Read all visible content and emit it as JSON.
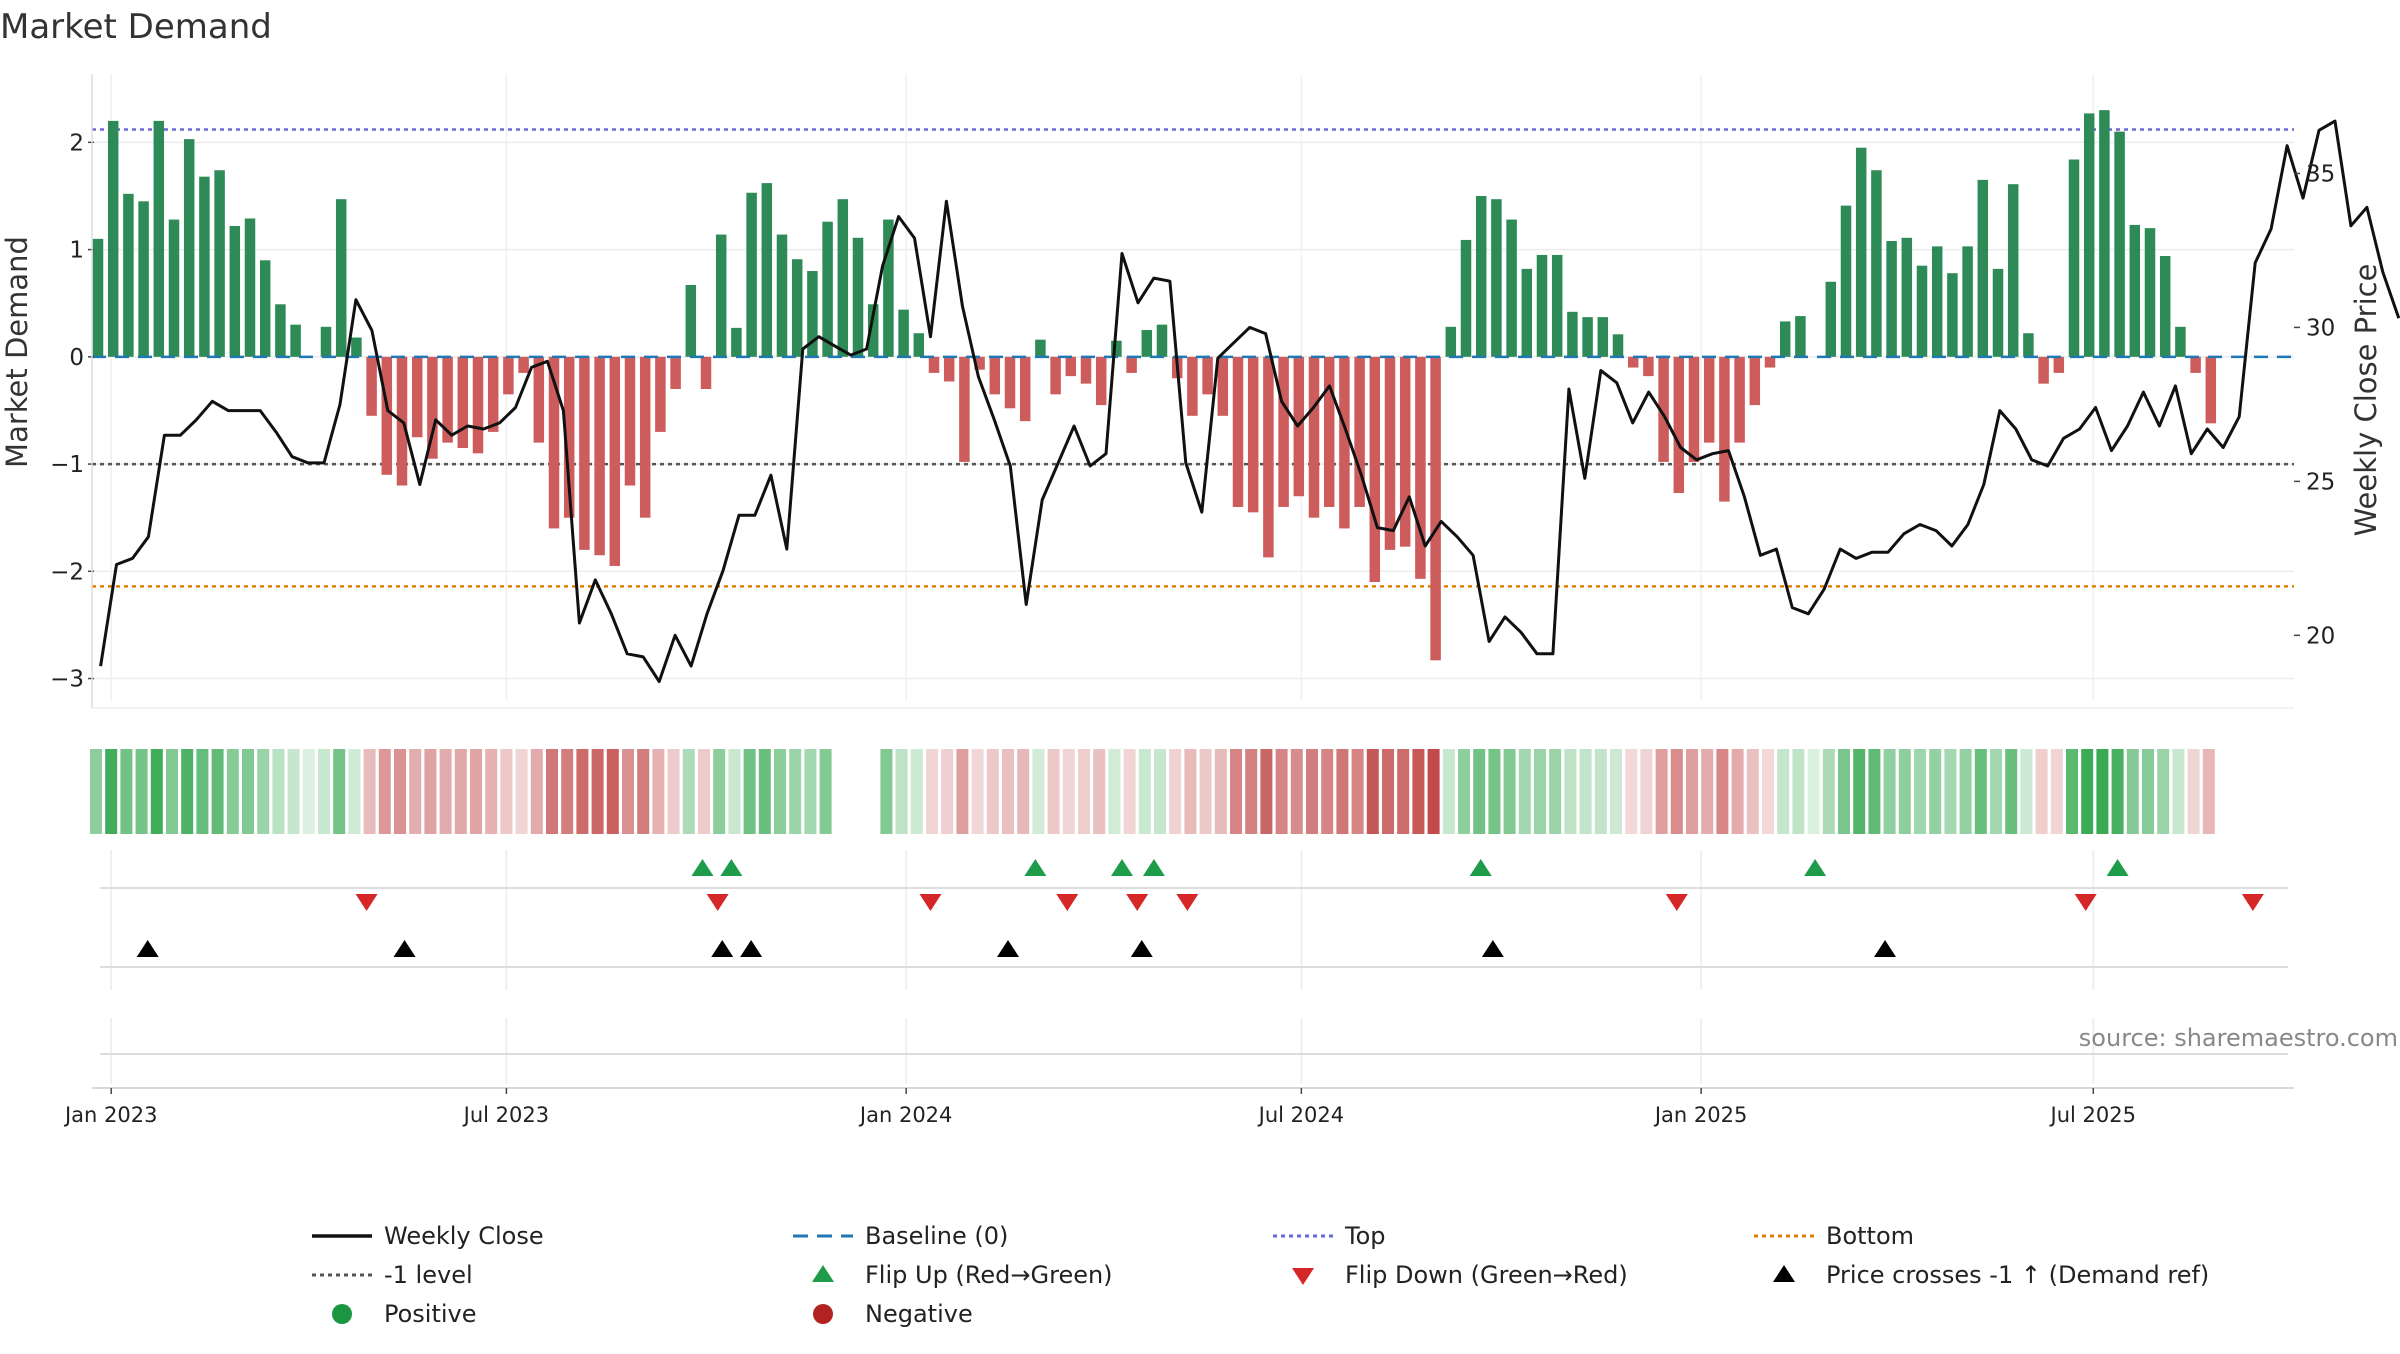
{
  "chart_data": {
    "type": "bar",
    "title": "Market Demand",
    "ylabel": "Market Demand",
    "y2label": "Weekly Close Price",
    "source": "source: sharemaestro.com",
    "ylim": [
      -3.2,
      2.6
    ],
    "y2lim": [
      17.9,
      38.1
    ],
    "y_ticks": [
      2,
      1,
      0,
      -1,
      -2,
      -3
    ],
    "y_tick_labels": [
      "2",
      "1",
      "0",
      "−1",
      "−2",
      "−3"
    ],
    "y2_ticks": [
      35,
      30,
      25,
      20
    ],
    "y2_tick_labels": [
      "35",
      "30",
      "25",
      "20"
    ],
    "x_ticks": [
      {
        "label": "Jan 2023",
        "week": 1
      },
      {
        "label": "Jul 2023",
        "week": 27
      },
      {
        "label": "Jan 2024",
        "week": 53.3
      },
      {
        "label": "Jul 2024",
        "week": 79.3
      },
      {
        "label": "Jan 2025",
        "week": 105.6
      },
      {
        "label": "Jul 2025",
        "week": 131.4
      }
    ],
    "levels": {
      "top": 2.12,
      "minus_one": -1.0,
      "bottom": -2.14
    },
    "series": [
      {
        "name": "Market Demand",
        "values": [
          1.1,
          2.2,
          1.52,
          1.45,
          2.2,
          1.28,
          2.03,
          1.68,
          1.74,
          1.22,
          1.29,
          0.9,
          0.49,
          0.3,
          0,
          0.28,
          1.47,
          0.18,
          -0.55,
          -1.1,
          -1.2,
          -0.75,
          -0.95,
          -0.8,
          -0.85,
          -0.9,
          -0.7,
          -0.35,
          -0.15,
          -0.8,
          -1.6,
          -1.5,
          -1.8,
          -1.85,
          -1.95,
          -1.2,
          -1.5,
          -0.7,
          -0.3,
          0.67,
          -0.3,
          1.14,
          0.27,
          1.53,
          1.62,
          1.14,
          0.91,
          0.8,
          1.26,
          1.47,
          1.11,
          0.49,
          1.28,
          0.44,
          0.22,
          -0.15,
          -0.23,
          -0.98,
          -0.12,
          -0.35,
          -0.48,
          -0.6,
          0.16,
          -0.35,
          -0.18,
          -0.25,
          -0.45,
          0.15,
          -0.15,
          0.25,
          0.3,
          -0.2,
          -0.55,
          -0.35,
          -0.55,
          -1.4,
          -1.45,
          -1.87,
          -1.4,
          -1.3,
          -1.5,
          -1.4,
          -1.6,
          -1.4,
          -2.1,
          -1.8,
          -1.77,
          -2.07,
          -2.83,
          0.28,
          1.09,
          1.5,
          1.47,
          1.28,
          0.82,
          0.95,
          0.95,
          0.42,
          0.37,
          0.37,
          0.21,
          -0.1,
          -0.18,
          -0.98,
          -1.27,
          -0.98,
          -0.8,
          -1.35,
          -0.8,
          -0.45,
          -0.1,
          0.33,
          0.38,
          0,
          0.7,
          1.41,
          1.95,
          1.74,
          1.08,
          1.11,
          0.85,
          1.03,
          0.78,
          1.03,
          1.65,
          0.82,
          1.61,
          0.22,
          -0.25,
          -0.15,
          1.84,
          2.27,
          2.3,
          2.1,
          1.23,
          1.2,
          0.94,
          0.28,
          -0.15,
          -0.62
        ]
      },
      {
        "name": "Weekly Close",
        "x_start": 0.3,
        "x_step": 1.05,
        "values": [
          19,
          22.3,
          22.5,
          23.2,
          26.5,
          26.5,
          27,
          27.6,
          27.3,
          27.3,
          27.3,
          26.6,
          25.8,
          25.6,
          25.6,
          27.5,
          30.9,
          29.9,
          27.3,
          26.9,
          24.9,
          27,
          26.5,
          26.8,
          26.7,
          26.9,
          27.4,
          28.7,
          28.9,
          27.3,
          20.4,
          21.8,
          20.7,
          19.4,
          19.3,
          18.5,
          20,
          19,
          20.7,
          22.1,
          23.9,
          23.9,
          25.2,
          22.8,
          29.3,
          29.7,
          29.4,
          29.1,
          29.3,
          32,
          33.6,
          32.9,
          29.7,
          34.1,
          30.7,
          28.4,
          27,
          25.5,
          21,
          24.4,
          25.6,
          26.8,
          25.5,
          25.9,
          32.4,
          30.8,
          31.6,
          31.5,
          25.6,
          24,
          29,
          29.5,
          30,
          29.8,
          27.6,
          26.8,
          27.4,
          28.1,
          26.7,
          25.2,
          23.5,
          23.4,
          24.5,
          22.9,
          23.7,
          23.2,
          22.6,
          19.8,
          20.6,
          20.1,
          19.4,
          19.4,
          28,
          25.1,
          28.6,
          28.2,
          26.9,
          27.9,
          27.1,
          26.1,
          25.7,
          25.9,
          26,
          24.5,
          22.6,
          22.8,
          20.9,
          20.7,
          21.5,
          22.8,
          22.5,
          22.7,
          22.7,
          23.3,
          23.6,
          23.4,
          22.9,
          23.6,
          24.9,
          27.3,
          26.7,
          25.7,
          25.5,
          26.4,
          26.7,
          27.4,
          26,
          26.8,
          27.9,
          26.8,
          28.1,
          25.9,
          26.7,
          26.1,
          27.1,
          32.1,
          33.2,
          35.9,
          34.2,
          36.4,
          36.7,
          33.3,
          33.9,
          31.8,
          30.3
        ]
      }
    ],
    "state_strip": {
      "gaps": [
        49,
        50,
        51
      ]
    },
    "flip_up_weeks": [
      39.9,
      41.8,
      61.8,
      67.5,
      69.6,
      91.1,
      113.1,
      133
    ],
    "flip_down_weeks": [
      17.8,
      40.9,
      54.9,
      63.9,
      68.5,
      71.8,
      104,
      130.9,
      141.9
    ],
    "price_cross_weeks": [
      3.4,
      20.3,
      41.2,
      43.1,
      60,
      68.8,
      91.9,
      117.7
    ],
    "colors": {
      "positive": "#2e8b57",
      "negative": "#cd5c5c",
      "price": "#111111",
      "baseline": "#1f77b4",
      "top": "#6a6ad8",
      "minus_one": "#555555",
      "bottom": "#e08000",
      "flip_up": "#1e9c4a",
      "flip_down": "#d62728",
      "price_cross": "#000000",
      "legend_positive": "#1a9641",
      "legend_negative": "#b22222"
    },
    "legend": [
      {
        "label": "Weekly Close",
        "kind": "line",
        "key": "price"
      },
      {
        "label": "Baseline (0)",
        "kind": "dashed",
        "key": "baseline"
      },
      {
        "label": "Top",
        "kind": "dotted",
        "key": "top"
      },
      {
        "label": "Bottom",
        "kind": "dotted",
        "key": "bottom"
      },
      {
        "label": "-1 level",
        "kind": "dotted",
        "key": "minus_one"
      },
      {
        "label": "Flip Up (Red→Green)",
        "kind": "tri-up",
        "key": "flip_up"
      },
      {
        "label": "Flip Down (Green→Red)",
        "kind": "tri-down",
        "key": "flip_down"
      },
      {
        "label": "Price crosses -1 ↑ (Demand ref)",
        "kind": "tri-up",
        "key": "price_cross"
      },
      {
        "label": "Positive",
        "kind": "dot",
        "key": "legend_positive"
      },
      {
        "label": "Negative",
        "kind": "dot",
        "key": "legend_negative"
      }
    ]
  }
}
